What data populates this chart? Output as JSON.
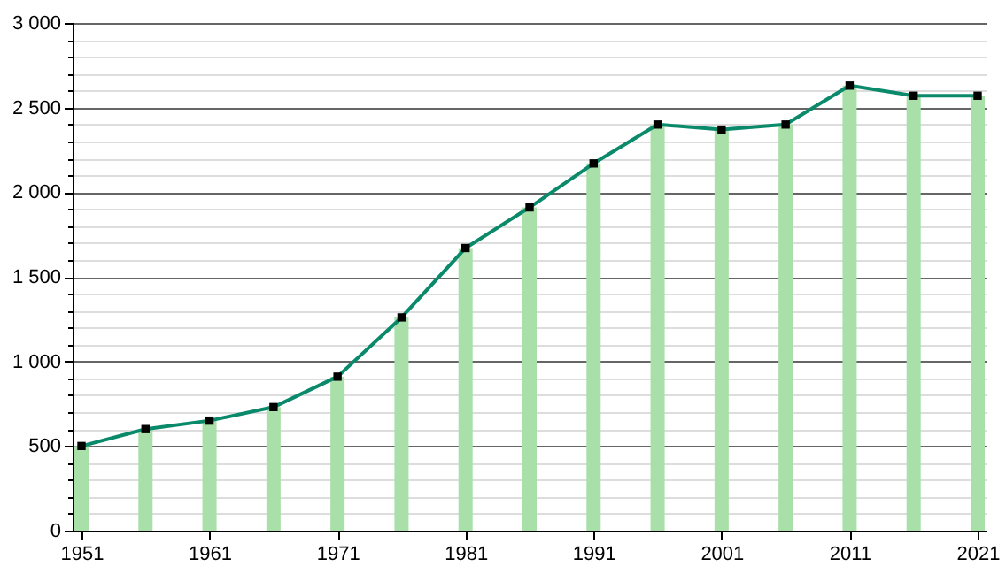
{
  "chart_data": {
    "type": "bar",
    "x": [
      1951,
      1956,
      1961,
      1966,
      1971,
      1976,
      1981,
      1986,
      1991,
      1996,
      2001,
      2006,
      2011,
      2016,
      2021
    ],
    "series": [
      {
        "color": "#a9e0a9",
        "values": [
          500,
          600,
          650,
          730,
          910,
          1260,
          1670,
          1910,
          2170,
          2400,
          2370,
          2400,
          2630,
          2570,
          2570
        ]
      },
      {
        "type": "line",
        "color": "#0a8a6a",
        "values": [
          500,
          600,
          650,
          730,
          910,
          1260,
          1670,
          1910,
          2170,
          2400,
          2370,
          2400,
          2630,
          2570,
          2570
        ]
      }
    ],
    "xlim": [
      1951,
      2021
    ],
    "xticks": [
      1951,
      1961,
      1971,
      1981,
      1991,
      2001,
      2011,
      2021
    ],
    "ylim": [
      0,
      3000
    ],
    "yticks": [
      0,
      {
        "value": 100,
        "label": null
      },
      {
        "value": 200,
        "label": null
      },
      {
        "value": 300,
        "label": null
      },
      {
        "value": 400,
        "label": null
      },
      500,
      {
        "value": 600,
        "label": null
      },
      {
        "value": 700,
        "label": null
      },
      {
        "value": 800,
        "label": null
      },
      {
        "value": 900,
        "label": null
      },
      {
        "value": 1000,
        "label": "1 000"
      },
      {
        "value": 1100,
        "label": null
      },
      {
        "value": 1200,
        "label": null
      },
      {
        "value": 1300,
        "label": null
      },
      {
        "value": 1400,
        "label": null
      },
      {
        "value": 1500,
        "label": "1 500"
      },
      {
        "value": 1600,
        "label": null
      },
      {
        "value": 1700,
        "label": null
      },
      {
        "value": 1800,
        "label": null
      },
      {
        "value": 1900,
        "label": null
      },
      {
        "value": 2000,
        "label": "2 000"
      },
      {
        "value": 2100,
        "label": null
      },
      {
        "value": 2200,
        "label": null
      },
      {
        "value": 2300,
        "label": null
      },
      {
        "value": 2400,
        "label": null
      },
      {
        "value": 2500,
        "label": "2 500"
      },
      {
        "value": 2600,
        "label": null
      },
      {
        "value": 2700,
        "label": null
      },
      {
        "value": 2800,
        "label": null
      },
      {
        "value": 2900,
        "label": null
      },
      {
        "value": 3000,
        "label": "3 000"
      }
    ],
    "grid": "y",
    "marker": "square",
    "line_style": "solid"
  }
}
